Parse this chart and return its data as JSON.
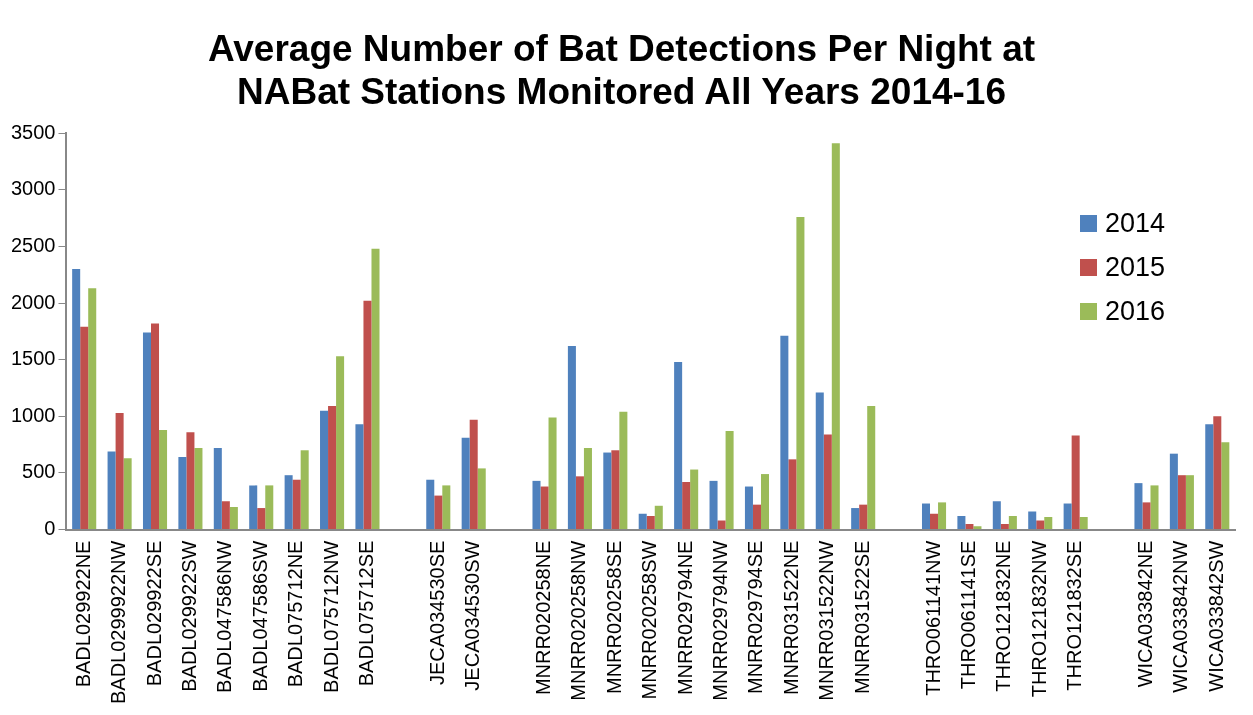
{
  "chart_data": {
    "type": "bar",
    "title": "Average Number of Bat Detections Per Night at NABat Stations Monitored All Years 2014-16",
    "categories": [
      "BADL029922NE",
      "BADL0299922NW",
      "BADL029922SE",
      "BADL029922SW",
      "BADL047586NW",
      "BADL047586SW",
      "BADL075712NE",
      "BADL075712NW",
      "BADL075712SE",
      null,
      "JECA034530SE",
      "JECA034530SW",
      null,
      "MNRR020258NE",
      "MNRR020258NW",
      "MNRR020258SE",
      "MNRR020258SW",
      "MNRR029794NE",
      "MNRR029794NW",
      "MNRR029794SE",
      "MNRR031522NE",
      "MNRR031522NW",
      "MNRR031522SE",
      null,
      "THRO061141NW",
      "THRO061141SE",
      "THRO121832NE",
      "THRO121832NW",
      "THRO121832SE",
      null,
      "WICA033842NE",
      "WICA033842NW",
      "WICA033842SW"
    ],
    "series": [
      {
        "name": "2014",
        "color": "#4f81bd",
        "values": [
          2300,
          690,
          1740,
          640,
          720,
          390,
          480,
          1050,
          930,
          null,
          440,
          810,
          null,
          430,
          1620,
          680,
          140,
          1480,
          430,
          380,
          1710,
          1210,
          190,
          null,
          230,
          120,
          250,
          160,
          230,
          null,
          410,
          670,
          930
        ]
      },
      {
        "name": "2015",
        "color": "#c0504d",
        "values": [
          1790,
          1030,
          1820,
          860,
          250,
          190,
          440,
          1090,
          2020,
          null,
          300,
          970,
          null,
          380,
          470,
          700,
          120,
          420,
          80,
          220,
          620,
          840,
          220,
          null,
          140,
          50,
          50,
          80,
          830,
          null,
          240,
          480,
          1000
        ]
      },
      {
        "name": "2016",
        "color": "#9bbb59",
        "values": [
          2130,
          630,
          880,
          720,
          200,
          390,
          700,
          1530,
          2480,
          null,
          390,
          540,
          null,
          990,
          720,
          1040,
          210,
          530,
          870,
          490,
          2760,
          3410,
          1090,
          null,
          240,
          30,
          120,
          110,
          110,
          null,
          390,
          480,
          770
        ]
      }
    ],
    "ylim": [
      0,
      3500
    ],
    "yticks": [
      0,
      500,
      1000,
      1500,
      2000,
      2500,
      3000,
      3500
    ],
    "grid": false,
    "legend": "right"
  }
}
